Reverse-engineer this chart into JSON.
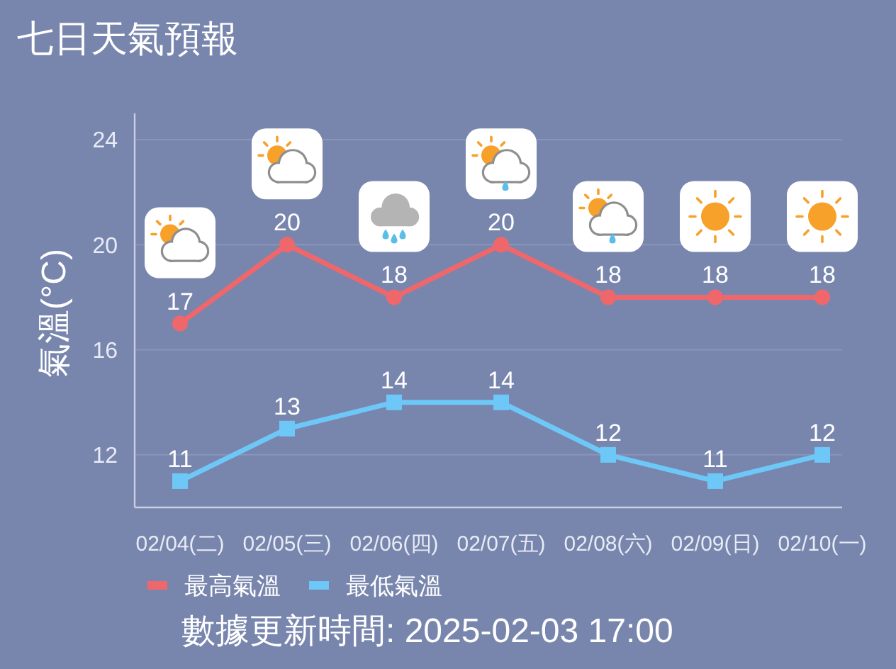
{
  "chart_data": {
    "type": "line",
    "title": "七日天氣預報",
    "ylabel": "氣溫(°C)",
    "categories": [
      "02/04(二)",
      "02/05(三)",
      "02/06(四)",
      "02/07(五)",
      "02/08(六)",
      "02/09(日)",
      "02/10(一)"
    ],
    "series": [
      {
        "name": "最高氣溫",
        "color": "#f0676b",
        "marker": "circle",
        "values": [
          17,
          20,
          18,
          20,
          18,
          18,
          18
        ]
      },
      {
        "name": "最低氣溫",
        "color": "#6ec8f7",
        "marker": "square",
        "values": [
          11,
          13,
          14,
          14,
          12,
          11,
          12
        ]
      }
    ],
    "ylim": [
      10,
      25
    ],
    "yticks": [
      12,
      16,
      20,
      24
    ],
    "grid": "y",
    "legend": "bottom",
    "data_labels": true,
    "line_style": "solid",
    "annotations": [
      "數據更新時間: 2025-02-03 17:00"
    ]
  }
}
